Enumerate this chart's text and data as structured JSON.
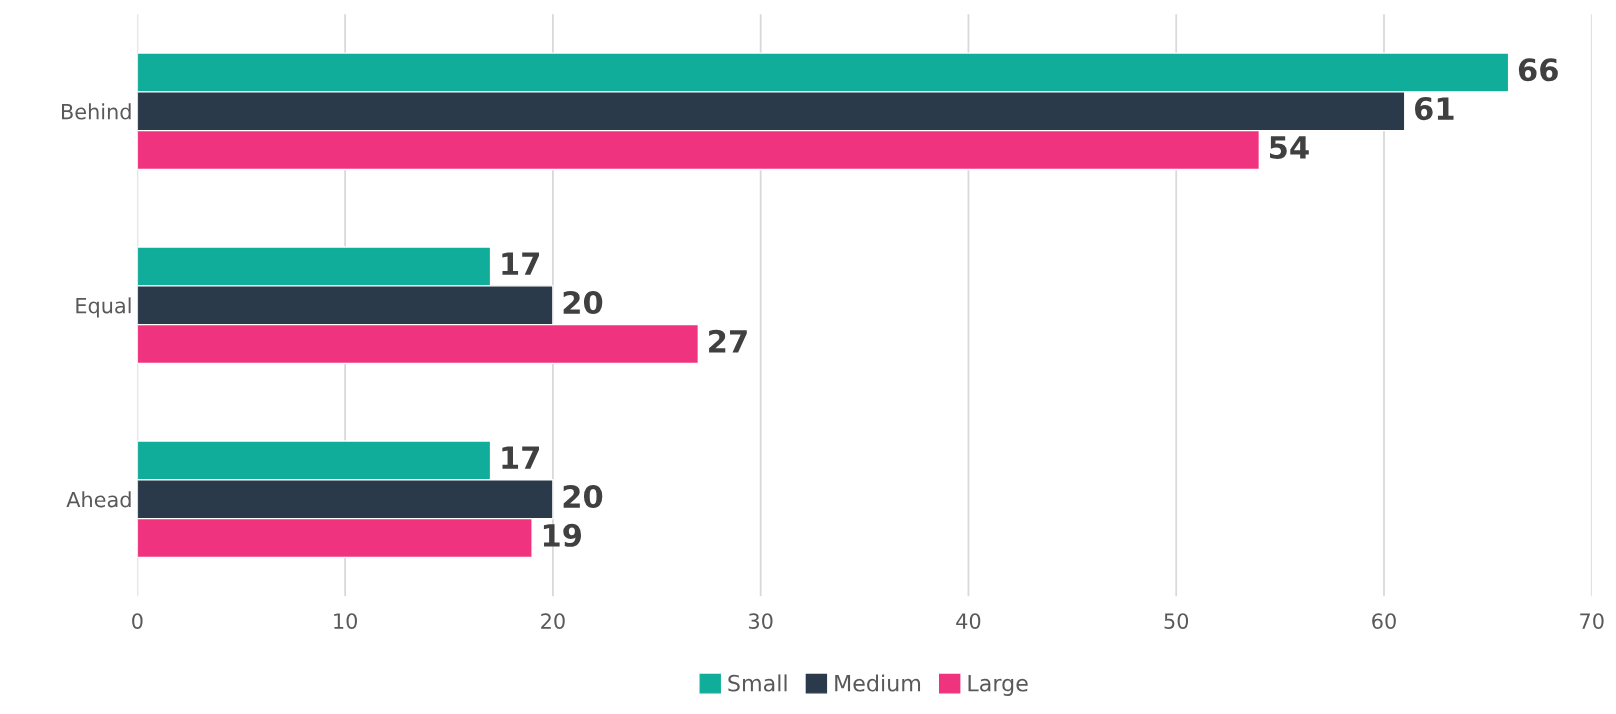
{
  "chart_data": {
    "type": "bar",
    "orientation": "horizontal",
    "categories": [
      "Behind",
      "Equal",
      "Ahead"
    ],
    "series": [
      {
        "name": "Small",
        "color": "#10ae9a",
        "values": [
          66,
          17,
          17
        ]
      },
      {
        "name": "Medium",
        "color": "#2b3a4b",
        "values": [
          61,
          20,
          20
        ]
      },
      {
        "name": "Large",
        "color": "#f0337e",
        "values": [
          54,
          27,
          19
        ]
      }
    ],
    "xlim": [
      0,
      70
    ],
    "xticks": [
      0,
      10,
      20,
      30,
      40,
      50,
      60,
      70
    ],
    "grid": "x",
    "legend": "bottom",
    "data_labels": true
  }
}
